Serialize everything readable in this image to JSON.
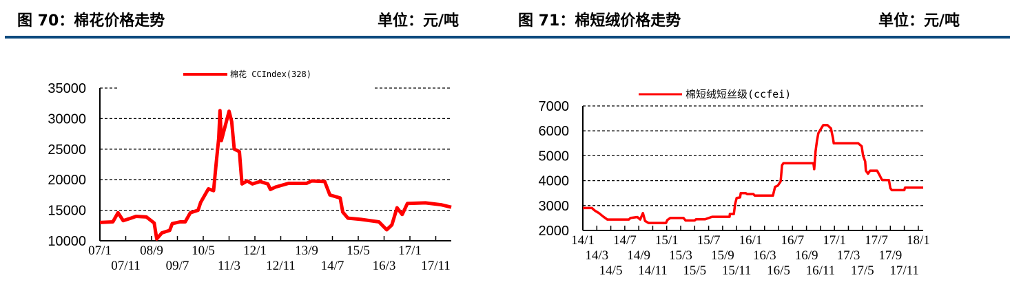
{
  "header": {
    "left_title": "图 70：棉花价格走势",
    "left_unit": "单位：元/吨",
    "right_title": "图 71：棉短绒价格走势",
    "right_unit": "单位：元/吨",
    "rule_color": "#0b4a7e"
  },
  "chart_data": [
    {
      "type": "line",
      "title": "",
      "xlabel": "",
      "ylabel": "",
      "ylim": [
        10000,
        35000
      ],
      "yticks": [
        "35000",
        "30000",
        "25000",
        "20000",
        "15000",
        "10000"
      ],
      "xlim": [
        "2007-01-01",
        "2018-05-01"
      ],
      "xticks": [
        "07/1",
        "07/11",
        "08/9",
        "09/7",
        "10/5",
        "11/3",
        "12/1",
        "12/11",
        "13/9",
        "14/7",
        "15/5",
        "16/3",
        "17/1",
        "17/11"
      ],
      "xtick_interval_months": 10,
      "grid": "horizontal dashed",
      "legend_position": "top",
      "series": [
        {
          "name": "棉花 CCIndex(328)",
          "color": "#ff0000",
          "points": [
            [
              "2007-01-01",
              13000
            ],
            [
              "2007-06-01",
              13100
            ],
            [
              "2007-08-01",
              14600
            ],
            [
              "2007-10-01",
              13300
            ],
            [
              "2008-01-01",
              13700
            ],
            [
              "2008-03-01",
              14000
            ],
            [
              "2008-07-01",
              13900
            ],
            [
              "2008-10-01",
              12900
            ],
            [
              "2008-11-01",
              10300
            ],
            [
              "2009-01-01",
              11300
            ],
            [
              "2009-04-01",
              11700
            ],
            [
              "2009-05-01",
              12800
            ],
            [
              "2009-08-01",
              13100
            ],
            [
              "2009-10-01",
              13100
            ],
            [
              "2009-12-01",
              14600
            ],
            [
              "2010-03-01",
              15000
            ],
            [
              "2010-04-01",
              16300
            ],
            [
              "2010-07-01",
              18500
            ],
            [
              "2010-09-01",
              18200
            ],
            [
              "2010-10-01",
              22700
            ],
            [
              "2010-11-01",
              26800
            ],
            [
              "2010-11-15",
              31300
            ],
            [
              "2010-12-01",
              26400
            ],
            [
              "2011-01-01",
              28000
            ],
            [
              "2011-03-01",
              31200
            ],
            [
              "2011-04-01",
              29500
            ],
            [
              "2011-05-01",
              25000
            ],
            [
              "2011-07-01",
              24600
            ],
            [
              "2011-07-15",
              22000
            ],
            [
              "2011-08-01",
              19300
            ],
            [
              "2011-10-01",
              19800
            ],
            [
              "2011-12-01",
              19300
            ],
            [
              "2012-03-01",
              19700
            ],
            [
              "2012-06-01",
              19300
            ],
            [
              "2012-07-01",
              18400
            ],
            [
              "2012-09-01",
              18800
            ],
            [
              "2013-02-01",
              19400
            ],
            [
              "2013-09-01",
              19400
            ],
            [
              "2013-11-01",
              19800
            ],
            [
              "2014-04-01",
              19700
            ],
            [
              "2014-06-01",
              17500
            ],
            [
              "2014-10-01",
              17000
            ],
            [
              "2014-11-01",
              14700
            ],
            [
              "2015-01-01",
              13700
            ],
            [
              "2015-06-01",
              13500
            ],
            [
              "2016-01-01",
              13100
            ],
            [
              "2016-04-01",
              11800
            ],
            [
              "2016-06-01",
              12600
            ],
            [
              "2016-08-01",
              15400
            ],
            [
              "2016-10-01",
              14300
            ],
            [
              "2016-12-01",
              16100
            ],
            [
              "2017-07-01",
              16200
            ],
            [
              "2018-01-01",
              15900
            ],
            [
              "2018-05-01",
              15500
            ]
          ]
        }
      ]
    },
    {
      "type": "line",
      "title": "",
      "xlabel": "",
      "ylabel": "",
      "ylim": [
        2000,
        7000
      ],
      "yticks": [
        "7000",
        "6000",
        "5000",
        "4000",
        "3000",
        "2000"
      ],
      "xlim": [
        "2014-01-01",
        "2018-01-22"
      ],
      "xticks": [
        "14/1",
        "14/3",
        "14/5",
        "14/7",
        "14/9",
        "14/11",
        "15/1",
        "15/3",
        "15/5",
        "15/7",
        "15/9",
        "15/11",
        "16/1",
        "16/3",
        "16/5",
        "16/7",
        "16/9",
        "16/11",
        "17/1",
        "17/3",
        "17/5",
        "17/7",
        "17/9",
        "17/11",
        "18/1"
      ],
      "xtick_interval_months": 2,
      "grid": "horizontal dashed",
      "legend_position": "top",
      "series": [
        {
          "name": "棉短绒短丝级(ccfei)",
          "color": "#ff0000",
          "points": [
            [
              "2014-01-01",
              2900
            ],
            [
              "2014-02-10",
              2900
            ],
            [
              "2014-02-22",
              2800
            ],
            [
              "2014-03-10",
              2700
            ],
            [
              "2014-03-28",
              2560
            ],
            [
              "2014-04-16",
              2440
            ],
            [
              "2014-07-19",
              2440
            ],
            [
              "2014-07-25",
              2500
            ],
            [
              "2014-08-25",
              2540
            ],
            [
              "2014-09-07",
              2440
            ],
            [
              "2014-09-19",
              2700
            ],
            [
              "2014-09-28",
              2380
            ],
            [
              "2014-10-13",
              2300
            ],
            [
              "2014-12-28",
              2300
            ],
            [
              "2015-01-04",
              2420
            ],
            [
              "2015-01-16",
              2500
            ],
            [
              "2015-03-13",
              2500
            ],
            [
              "2015-03-22",
              2400
            ],
            [
              "2015-05-01",
              2400
            ],
            [
              "2015-05-07",
              2450
            ],
            [
              "2015-06-16",
              2450
            ],
            [
              "2015-07-16",
              2550
            ],
            [
              "2015-10-01",
              2550
            ],
            [
              "2015-10-02",
              2660
            ],
            [
              "2015-10-19",
              2660
            ],
            [
              "2015-10-25",
              3070
            ],
            [
              "2015-11-01",
              3300
            ],
            [
              "2015-11-16",
              3330
            ],
            [
              "2015-11-19",
              3500
            ],
            [
              "2015-12-10",
              3500
            ],
            [
              "2015-12-16",
              3460
            ],
            [
              "2016-01-13",
              3460
            ],
            [
              "2016-01-19",
              3400
            ],
            [
              "2016-04-07",
              3400
            ],
            [
              "2016-04-16",
              3750
            ],
            [
              "2016-04-28",
              3800
            ],
            [
              "2016-05-10",
              3970
            ],
            [
              "2016-05-16",
              4620
            ],
            [
              "2016-05-22",
              4700
            ],
            [
              "2016-10-01",
              4700
            ],
            [
              "2016-10-04",
              4460
            ],
            [
              "2016-10-10",
              5180
            ],
            [
              "2016-10-16",
              5600
            ],
            [
              "2016-10-22",
              5900
            ],
            [
              "2016-11-01",
              6050
            ],
            [
              "2016-11-13",
              6230
            ],
            [
              "2016-12-01",
              6230
            ],
            [
              "2016-12-16",
              6100
            ],
            [
              "2016-12-25",
              5700
            ],
            [
              "2016-12-28",
              5500
            ],
            [
              "2017-04-13",
              5500
            ],
            [
              "2017-04-28",
              5380
            ],
            [
              "2017-05-04",
              5000
            ],
            [
              "2017-05-13",
              4770
            ],
            [
              "2017-05-16",
              4400
            ],
            [
              "2017-05-25",
              4280
            ],
            [
              "2017-06-04",
              4400
            ],
            [
              "2017-07-04",
              4400
            ],
            [
              "2017-07-16",
              4200
            ],
            [
              "2017-07-25",
              4030
            ],
            [
              "2017-08-25",
              4020
            ],
            [
              "2017-09-01",
              3700
            ],
            [
              "2017-09-07",
              3620
            ],
            [
              "2017-11-01",
              3620
            ],
            [
              "2017-11-04",
              3720
            ],
            [
              "2018-01-22",
              3720
            ]
          ]
        }
      ]
    }
  ]
}
